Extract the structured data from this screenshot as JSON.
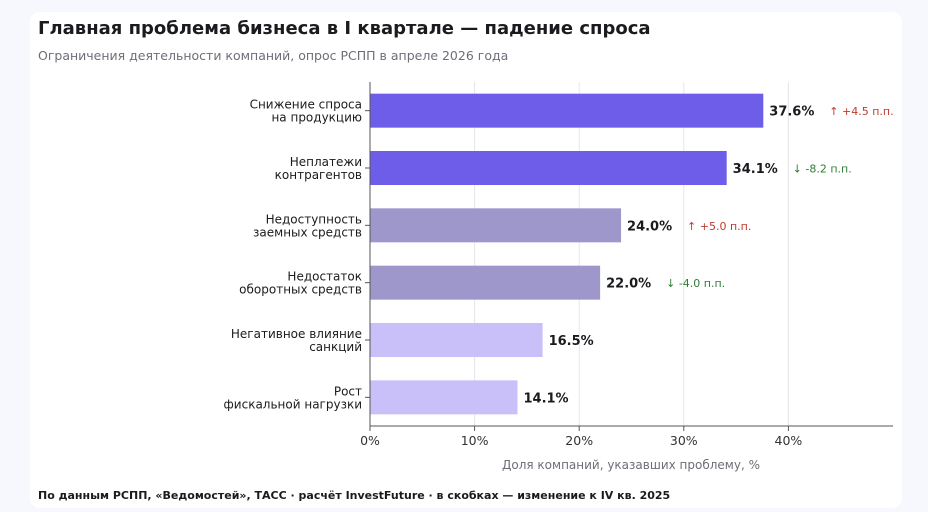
{
  "header": {
    "title": "Главная проблема бизнеса в I квартале — падение спроса",
    "subtitle": "Ограничения деятельности компаний, опрос РСПП в апреле 2026 года"
  },
  "footer": {
    "source": "По данным РСПП, «Ведомостей», ТАСС · расчёт InvestFuture · в скобках — изменение к IV кв. 2025"
  },
  "colors": {
    "bar_high": "#6e5de8",
    "bar_mid": "#9d97cc",
    "bar_low": "#c9c0fa",
    "delta_up": "#c0392b",
    "delta_down": "#2e7d32",
    "grid": "#e6e6ea"
  },
  "chart_data": {
    "type": "bar",
    "orientation": "horizontal",
    "categories": [
      [
        "Снижение спроса",
        "на продукцию"
      ],
      [
        "Неплатежи",
        "контрагентов"
      ],
      [
        "Недоступность",
        "заемных средств"
      ],
      [
        "Недостаток",
        "оборотных средств"
      ],
      [
        "Негативное влияние",
        "санкций"
      ],
      [
        "Рост",
        "фискальной нагрузки"
      ]
    ],
    "values": [
      37.6,
      34.1,
      24.0,
      22.0,
      16.5,
      14.1
    ],
    "value_labels": [
      "37.6%",
      "34.1%",
      "24.0%",
      "22.0%",
      "16.5%",
      "14.1%"
    ],
    "deltas": [
      "↑ +4.5 п.п.",
      "↓ -8.2 п.п.",
      "↑ +5.0 п.п.",
      "↓ -4.0 п.п.",
      "",
      ""
    ],
    "delta_directions": [
      "up",
      "down",
      "up",
      "down",
      "",
      ""
    ],
    "color_groups": [
      "high",
      "high",
      "mid",
      "mid",
      "low",
      "low"
    ],
    "xlabel": "Доля компаний, указавших проблему, %",
    "ylabel": "",
    "xlim": [
      0,
      50
    ],
    "xticks": [
      0,
      10,
      20,
      30,
      40
    ],
    "xtick_labels": [
      "0%",
      "10%",
      "20%",
      "30%",
      "40%"
    ],
    "grid": "vertical",
    "legend": "none"
  }
}
